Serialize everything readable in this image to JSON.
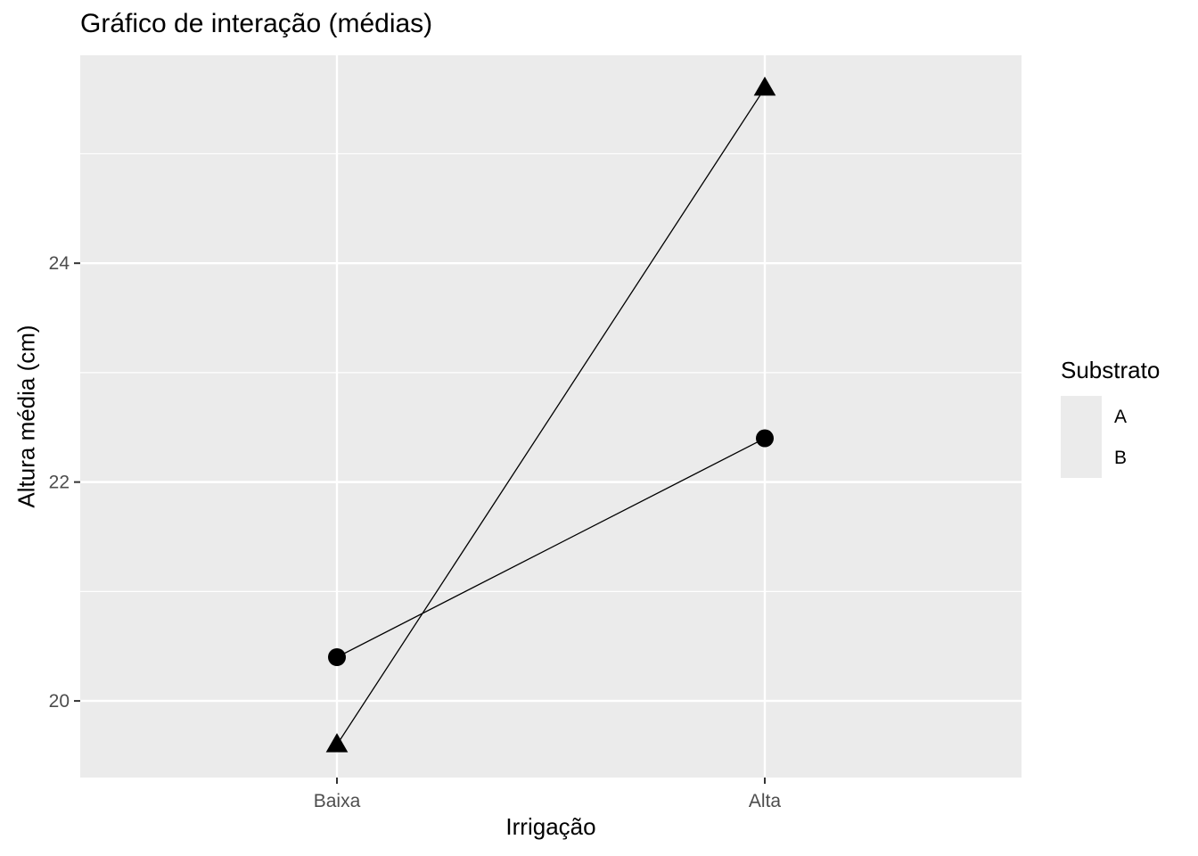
{
  "chart_data": {
    "type": "line",
    "title": "Gráfico de interação (médias)",
    "xlabel": "Irrigação",
    "ylabel": "Altura média (cm)",
    "categories": [
      "Baixa",
      "Alta"
    ],
    "y_ticks": [
      20,
      22,
      24
    ],
    "ylim": [
      19.3,
      25.9
    ],
    "grid": true,
    "legend": {
      "title": "Substrato",
      "position": "right"
    },
    "series": [
      {
        "name": "A",
        "marker": "circle",
        "values": [
          20.4,
          22.4
        ]
      },
      {
        "name": "B",
        "marker": "triangle",
        "values": [
          19.6,
          25.6
        ]
      }
    ],
    "colors": {
      "panel": "#ebebeb",
      "grid": "#ffffff",
      "marks": "#000000",
      "tick_text": "#4d4d4d"
    }
  }
}
